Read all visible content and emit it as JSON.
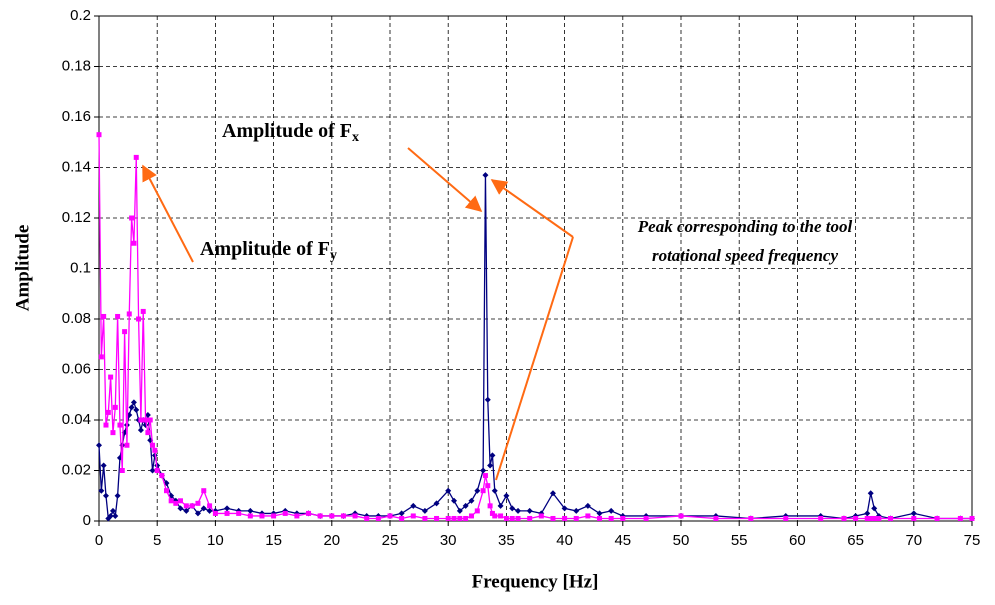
{
  "chart_data": {
    "type": "line",
    "y_label": "Amplitude",
    "x_label": "Frequency [Hz]",
    "annotations": [
      {
        "text": "Amplitude of F",
        "sub": "x"
      },
      {
        "text": "Amplitude of F",
        "sub": "y"
      },
      {
        "lines": [
          "Peak corresponding to the tool",
          "rotational speed frequency"
        ]
      }
    ],
    "x": [
      0,
      0.2,
      0.4,
      0.6,
      0.8,
      1,
      1.2,
      1.4,
      1.6,
      1.8,
      2,
      2.2,
      2.4,
      2.6,
      2.8,
      3,
      3.2,
      3.4,
      3.6,
      3.8,
      4,
      4.2,
      4.4,
      4.6,
      4.8,
      5,
      5.4,
      5.8,
      6.2,
      6.6,
      7,
      7.5,
      8,
      8.5,
      9,
      9.5,
      10,
      11,
      12,
      13,
      14,
      15,
      16,
      17,
      18,
      19,
      20,
      21,
      22,
      23,
      24,
      25,
      26,
      27,
      28,
      29,
      30,
      30.5,
      31,
      31.5,
      32,
      32.5,
      33,
      33.2,
      33.4,
      33.6,
      33.8,
      34,
      34.5,
      35,
      35.5,
      36,
      37,
      38,
      39,
      40,
      41,
      42,
      43,
      44,
      45,
      47,
      50,
      53,
      56,
      59,
      62,
      64,
      65,
      66,
      66.3,
      66.6,
      67,
      68,
      70,
      72,
      74,
      75
    ],
    "series": [
      {
        "name": "Fx",
        "color": "#000080",
        "marker": "diamond",
        "values": [
          0.03,
          0.012,
          0.022,
          0.01,
          0.001,
          0.002,
          0.004,
          0.002,
          0.01,
          0.025,
          0.03,
          0.035,
          0.038,
          0.042,
          0.045,
          0.047,
          0.044,
          0.04,
          0.036,
          0.04,
          0.038,
          0.042,
          0.032,
          0.02,
          0.026,
          0.022,
          0.018,
          0.015,
          0.01,
          0.008,
          0.005,
          0.004,
          0.006,
          0.003,
          0.005,
          0.004,
          0.004,
          0.005,
          0.004,
          0.004,
          0.003,
          0.003,
          0.004,
          0.003,
          0.003,
          0.002,
          0.002,
          0.002,
          0.003,
          0.002,
          0.002,
          0.002,
          0.003,
          0.006,
          0.004,
          0.007,
          0.012,
          0.008,
          0.004,
          0.006,
          0.008,
          0.012,
          0.02,
          0.137,
          0.048,
          0.022,
          0.026,
          0.012,
          0.006,
          0.01,
          0.005,
          0.004,
          0.004,
          0.003,
          0.011,
          0.005,
          0.004,
          0.006,
          0.003,
          0.004,
          0.002,
          0.002,
          0.002,
          0.002,
          0.001,
          0.002,
          0.002,
          0.001,
          0.002,
          0.003,
          0.011,
          0.005,
          0.002,
          0.001,
          0.003,
          0.001,
          0.001,
          0.001
        ]
      },
      {
        "name": "Fy",
        "color": "#ff00ff",
        "marker": "square",
        "values": [
          0.153,
          0.065,
          0.081,
          0.038,
          0.043,
          0.057,
          0.035,
          0.045,
          0.081,
          0.038,
          0.02,
          0.075,
          0.03,
          0.082,
          0.12,
          0.11,
          0.144,
          0.08,
          0.04,
          0.083,
          0.04,
          0.035,
          0.04,
          0.03,
          0.028,
          0.02,
          0.018,
          0.012,
          0.008,
          0.007,
          0.008,
          0.006,
          0.006,
          0.007,
          0.012,
          0.006,
          0.003,
          0.003,
          0.003,
          0.002,
          0.002,
          0.002,
          0.003,
          0.002,
          0.003,
          0.002,
          0.002,
          0.002,
          0.002,
          0.001,
          0.001,
          0.002,
          0.001,
          0.002,
          0.001,
          0.001,
          0.001,
          0.001,
          0.001,
          0.001,
          0.002,
          0.004,
          0.012,
          0.018,
          0.014,
          0.006,
          0.003,
          0.002,
          0.002,
          0.001,
          0.001,
          0.001,
          0.001,
          0.002,
          0.001,
          0.001,
          0.001,
          0.002,
          0.001,
          0.001,
          0.001,
          0.001,
          0.002,
          0.001,
          0.001,
          0.001,
          0.001,
          0.001,
          0.001,
          0.001,
          0.001,
          0.001,
          0.001,
          0.001,
          0.001,
          0.001,
          0.001,
          0.001
        ]
      }
    ],
    "xlim": [
      0,
      75
    ],
    "xticks": [
      0,
      5,
      10,
      15,
      20,
      25,
      30,
      35,
      40,
      45,
      50,
      55,
      60,
      65,
      70,
      75
    ],
    "ylim": [
      0,
      0.2
    ],
    "yticks": [
      0,
      0.02,
      0.04,
      0.06,
      0.08,
      0.1,
      0.12,
      0.14,
      0.16,
      0.18,
      0.2
    ],
    "grid": true
  }
}
